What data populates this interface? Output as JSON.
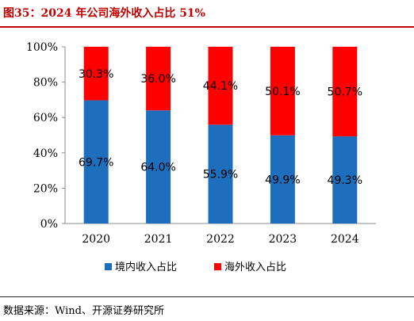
{
  "figure_title": "图35：2024 年公司海外收入占比 51%",
  "source_note": "数据来源：Wind、开源证券研究所",
  "colors": {
    "domestic": "#1d6fbe",
    "overseas": "#ff0000",
    "title": "#c00000"
  },
  "chart_data": {
    "type": "bar",
    "stacked": true,
    "percent": true,
    "categories": [
      "2020",
      "2021",
      "2022",
      "2023",
      "2024"
    ],
    "series": [
      {
        "name": "境内收入占比",
        "values": [
          69.7,
          64.0,
          55.9,
          49.9,
          49.3
        ],
        "labels": [
          "69.7%",
          "64.0%",
          "55.9%",
          "49.9%",
          "49.3%"
        ],
        "color": "#1d6fbe"
      },
      {
        "name": "海外收入占比",
        "values": [
          30.3,
          36.0,
          44.1,
          50.1,
          50.7
        ],
        "labels": [
          "30.3%",
          "36.0%",
          "44.1%",
          "50.1%",
          "50.7%"
        ],
        "color": "#ff0000"
      }
    ],
    "ylim": [
      0,
      100
    ],
    "yticks": [
      "0%",
      "20%",
      "40%",
      "60%",
      "80%",
      "100%"
    ],
    "ytick_values": [
      0,
      20,
      40,
      60,
      80,
      100
    ],
    "grid": false,
    "legend": "bottom"
  }
}
